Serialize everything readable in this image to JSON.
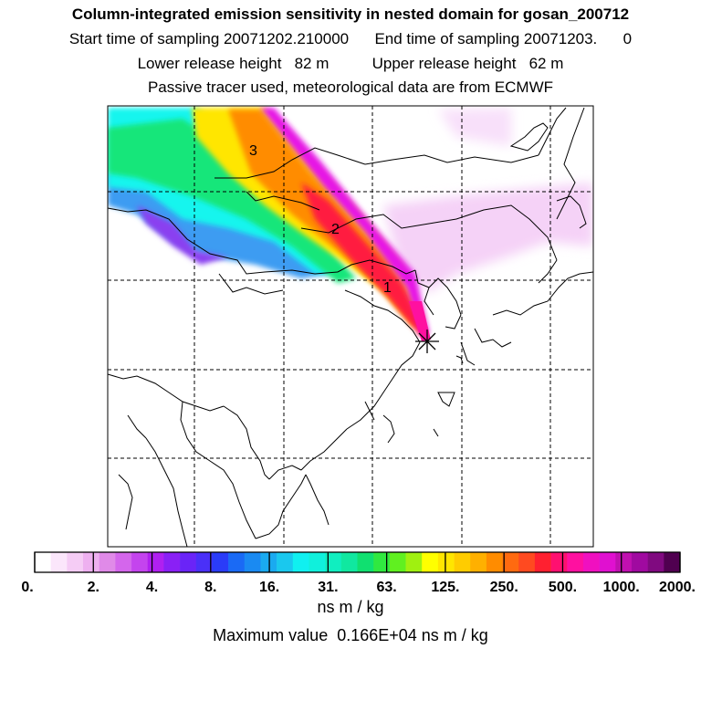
{
  "header": {
    "title": "Column-integrated emission sensitivity in nested domain for gosan_200712",
    "sampling_line": "Start time of sampling 20071202.210000      End time of sampling 20071203.      0",
    "release_line": "Lower release height   82 m          Upper release height   62 m",
    "tracer_line": "Passive tracer used, meteorological data are from ECMWF"
  },
  "map": {
    "projection": "lat-lon",
    "grid_lines": "dashed",
    "contour_labels": [
      "3",
      "2",
      "1"
    ],
    "receptor_marker": "star",
    "plume_colors": {
      "cyan": "#19f5ee",
      "green": "#19e67a",
      "yellow": "#ffe600",
      "orange": "#ff8c00",
      "red": "#ff1a40",
      "magenta": "#e619e6",
      "light_purple": "#f2c7f5",
      "blue": "#3c9cf2"
    }
  },
  "colorbar": {
    "tick_labels": [
      "0.",
      "2.",
      "4.",
      "8.",
      "16.",
      "31.",
      "63.",
      "125.",
      "250.",
      "500.",
      "1000.",
      "2000."
    ],
    "colors": [
      "#ffffff",
      "#fbe6fb",
      "#f5ccf5",
      "#eeb0f0",
      "#e08ae8",
      "#d466ec",
      "#c444ee",
      "#b020f0",
      "#8a20f5",
      "#6a24f7",
      "#4a30f8",
      "#2a3cf8",
      "#1a6af5",
      "#1a8af2",
      "#1aaaf0",
      "#1ac8ee",
      "#10f0f0",
      "#10f0dc",
      "#10eec0",
      "#10e8a0",
      "#10e070",
      "#30e840",
      "#60f020",
      "#a0f010",
      "#ffff00",
      "#ffe600",
      "#ffcc00",
      "#ffb000",
      "#ff8c00",
      "#ff6a10",
      "#ff4a20",
      "#ff2030",
      "#ff1070",
      "#ff10a0",
      "#f010c0",
      "#e010d0",
      "#c010b0",
      "#a00aa0",
      "#800a80",
      "#500050"
    ],
    "units": "ns m / kg",
    "max_value_text": "Maximum value  0.166E+04 ns m / kg"
  }
}
